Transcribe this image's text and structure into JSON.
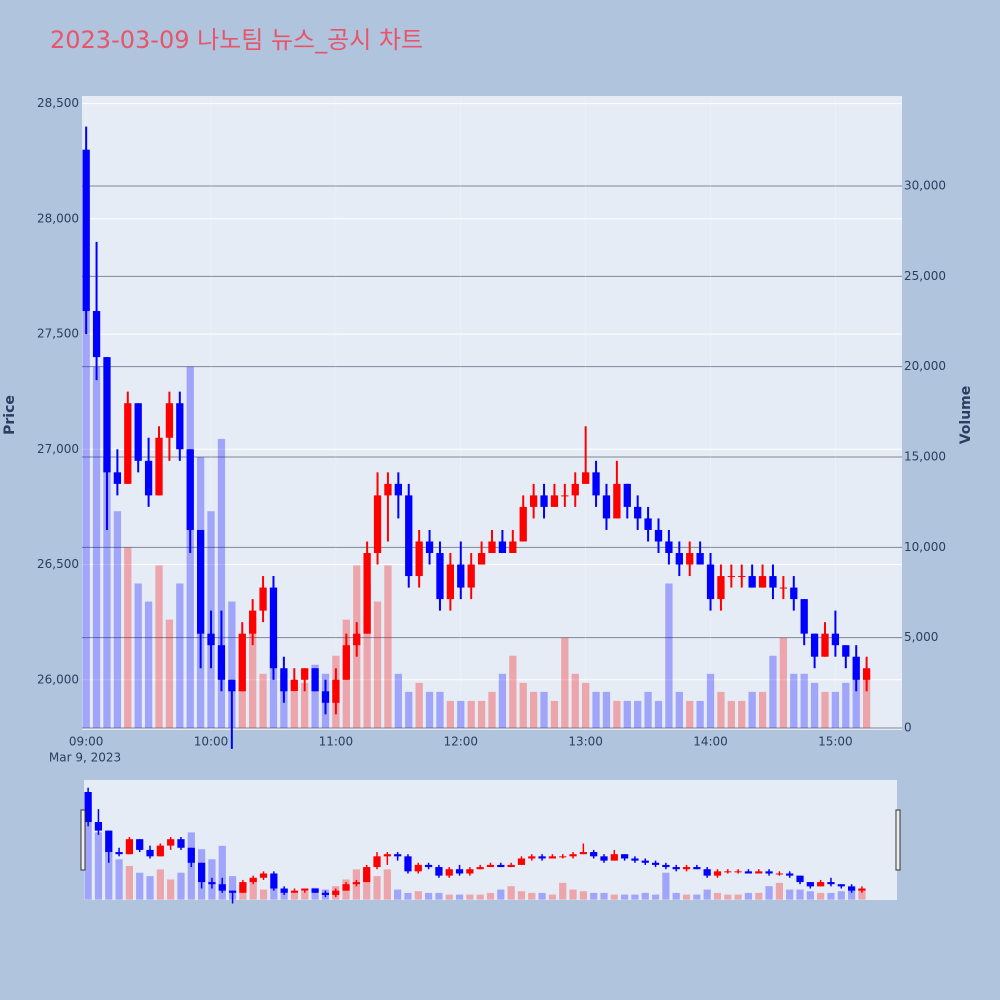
{
  "chart_data": {
    "type": "candlestick",
    "title": "2023-03-09 나노팀 뉴스_공시 차트",
    "y_label": "Price",
    "y2_label": "Volume",
    "x_date_label": "Mar 9, 2023",
    "increasing_color": "#ff0000",
    "decreasing_color": "#0000ff",
    "x": [
      "2023-03-09 09:00",
      "2023-03-09 09:05",
      "2023-03-09 09:10",
      "2023-03-09 09:15",
      "2023-03-09 09:20",
      "2023-03-09 09:25",
      "2023-03-09 09:30",
      "2023-03-09 09:35",
      "2023-03-09 09:40",
      "2023-03-09 09:45",
      "2023-03-09 09:50",
      "2023-03-09 09:55",
      "2023-03-09 10:00",
      "2023-03-09 10:05",
      "2023-03-09 10:10",
      "2023-03-09 10:15",
      "2023-03-09 10:20",
      "2023-03-09 10:25",
      "2023-03-09 10:30",
      "2023-03-09 10:35",
      "2023-03-09 10:40",
      "2023-03-09 10:45",
      "2023-03-09 10:50",
      "2023-03-09 10:55",
      "2023-03-09 11:00",
      "2023-03-09 11:05",
      "2023-03-09 11:10",
      "2023-03-09 11:15",
      "2023-03-09 11:20",
      "2023-03-09 11:25",
      "2023-03-09 11:30",
      "2023-03-09 11:35",
      "2023-03-09 11:40",
      "2023-03-09 11:45",
      "2023-03-09 11:50",
      "2023-03-09 11:55",
      "2023-03-09 12:00",
      "2023-03-09 12:05",
      "2023-03-09 12:10",
      "2023-03-09 12:15",
      "2023-03-09 12:20",
      "2023-03-09 12:25",
      "2023-03-09 12:30",
      "2023-03-09 12:35",
      "2023-03-09 12:40",
      "2023-03-09 12:45",
      "2023-03-09 12:50",
      "2023-03-09 12:55",
      "2023-03-09 13:00",
      "2023-03-09 13:05",
      "2023-03-09 13:10",
      "2023-03-09 13:15",
      "2023-03-09 13:20",
      "2023-03-09 13:25",
      "2023-03-09 13:30",
      "2023-03-09 13:35",
      "2023-03-09 13:40",
      "2023-03-09 13:45",
      "2023-03-09 13:50",
      "2023-03-09 13:55",
      "2023-03-09 14:00",
      "2023-03-09 14:05",
      "2023-03-09 14:10",
      "2023-03-09 14:15",
      "2023-03-09 14:20",
      "2023-03-09 14:25",
      "2023-03-09 14:30",
      "2023-03-09 14:35",
      "2023-03-09 14:40",
      "2023-03-09 14:45",
      "2023-03-09 14:50",
      "2023-03-09 14:55",
      "2023-03-09 15:00",
      "2023-03-09 15:05",
      "2023-03-09 15:10",
      "2023-03-09 15:15"
    ],
    "open": [
      28300,
      27600,
      27400,
      26900,
      26850,
      27200,
      26950,
      26800,
      27050,
      27200,
      27000,
      26650,
      26200,
      26150,
      26000,
      25950,
      26200,
      26300,
      26400,
      26050,
      25950,
      26000,
      26050,
      25950,
      25900,
      26000,
      26150,
      26200,
      26550,
      26800,
      26850,
      26800,
      26450,
      26600,
      26550,
      26350,
      26500,
      26400,
      26500,
      26550,
      26600,
      26550,
      26600,
      26750,
      26800,
      26750,
      26800,
      26800,
      26850,
      26900,
      26800,
      26700,
      26850,
      26750,
      26700,
      26650,
      26600,
      26550,
      26500,
      26550,
      26500,
      26350,
      26450,
      26450,
      26450,
      26400,
      26450,
      26400,
      26400,
      26350,
      26200,
      26100,
      26200,
      26150,
      26100,
      26000
    ],
    "high": [
      28400,
      27900,
      27400,
      27000,
      27250,
      27200,
      27050,
      27100,
      27250,
      27250,
      27000,
      26650,
      26300,
      26300,
      26000,
      26250,
      26350,
      26450,
      26450,
      26100,
      26050,
      26050,
      26050,
      26000,
      26050,
      26200,
      26250,
      26600,
      26900,
      26900,
      26900,
      26850,
      26650,
      26650,
      26600,
      26550,
      26600,
      26550,
      26600,
      26650,
      26650,
      26650,
      26800,
      26850,
      26850,
      26850,
      26850,
      26900,
      27100,
      26950,
      26850,
      26950,
      26850,
      26800,
      26750,
      26700,
      26650,
      26600,
      26600,
      26600,
      26550,
      26500,
      26500,
      26500,
      26500,
      26500,
      26500,
      26450,
      26450,
      26350,
      26200,
      26250,
      26300,
      26150,
      26150,
      26100
    ],
    "low": [
      27500,
      27300,
      26650,
      26800,
      26850,
      26900,
      26750,
      26800,
      26950,
      26950,
      26550,
      26050,
      26050,
      25950,
      25700,
      25950,
      26150,
      26250,
      26000,
      25900,
      25950,
      25950,
      25950,
      25850,
      25850,
      26000,
      26100,
      26200,
      26500,
      26600,
      26700,
      26400,
      26400,
      26500,
      26300,
      26300,
      26350,
      26350,
      26500,
      26550,
      26550,
      26550,
      26600,
      26700,
      26700,
      26750,
      26750,
      26750,
      26850,
      26750,
      26650,
      26700,
      26700,
      26650,
      26600,
      26550,
      26500,
      26450,
      26450,
      26500,
      26300,
      26300,
      26400,
      26400,
      26400,
      26400,
      26350,
      26350,
      26300,
      26150,
      26050,
      26100,
      26100,
      26050,
      25950,
      25950
    ],
    "close": [
      27600,
      27400,
      26900,
      26850,
      27200,
      26950,
      26800,
      27050,
      27200,
      27000,
      26650,
      26200,
      26150,
      26000,
      25950,
      26200,
      26300,
      26400,
      26050,
      25950,
      26000,
      26050,
      25950,
      25900,
      26000,
      26150,
      26200,
      26550,
      26800,
      26850,
      26800,
      26450,
      26600,
      26550,
      26350,
      26500,
      26400,
      26500,
      26550,
      26600,
      26550,
      26600,
      26750,
      26800,
      26750,
      26800,
      26800,
      26850,
      26900,
      26800,
      26700,
      26850,
      26750,
      26700,
      26650,
      26600,
      26550,
      26500,
      26550,
      26500,
      26350,
      26450,
      26450,
      26450,
      26400,
      26450,
      26400,
      26400,
      26350,
      26200,
      26100,
      26200,
      26150,
      26100,
      26000,
      26050
    ],
    "volume": [
      30000,
      20000,
      15000,
      12000,
      10000,
      8000,
      7000,
      9000,
      6000,
      8000,
      20000,
      15000,
      12000,
      16000,
      7000,
      5000,
      6000,
      3000,
      4000,
      3000,
      2000,
      2500,
      3500,
      3000,
      4000,
      6000,
      9000,
      8000,
      7000,
      9000,
      3000,
      2000,
      2500,
      2000,
      2000,
      1500,
      1500,
      1500,
      1500,
      2000,
      3000,
      4000,
      2500,
      2000,
      2000,
      1500,
      5000,
      3000,
      2500,
      2000,
      2000,
      1500,
      1500,
      1500,
      2000,
      1500,
      8000,
      2000,
      1500,
      1500,
      3000,
      2000,
      1500,
      1500,
      2000,
      2000,
      4000,
      5000,
      3000,
      3000,
      2500,
      2000,
      2000,
      2500,
      3000,
      3000
    ],
    "xlim": [
      "2023-03-09 08:58",
      "2023-03-09 15:32"
    ],
    "xticks": [
      {
        "value": "2023-03-09 09:00",
        "label": "09:00"
      },
      {
        "value": "2023-03-09 10:00",
        "label": "10:00"
      },
      {
        "value": "2023-03-09 11:00",
        "label": "11:00"
      },
      {
        "value": "2023-03-09 12:00",
        "label": "12:00"
      },
      {
        "value": "2023-03-09 13:00",
        "label": "13:00"
      },
      {
        "value": "2023-03-09 14:00",
        "label": "14:00"
      },
      {
        "value": "2023-03-09 15:00",
        "label": "15:00"
      }
    ],
    "ylim": [
      25782,
      28533
    ],
    "yticks": [
      {
        "value": 26000,
        "label": "26,000"
      },
      {
        "value": 26500,
        "label": "26,500"
      },
      {
        "value": 27000,
        "label": "27,000"
      },
      {
        "value": 27500,
        "label": "27,500"
      },
      {
        "value": 28000,
        "label": "28,000"
      },
      {
        "value": 28500,
        "label": "28,500"
      }
    ],
    "y2lim": [
      -110,
      34982
    ],
    "y2ticks": [
      0,
      {
        "value": 5000,
        "label": "5,000"
      },
      {
        "value": 10000,
        "label": "10,000"
      },
      {
        "value": 15000,
        "label": "15,000"
      },
      {
        "value": 20000,
        "label": "20,000"
      },
      {
        "value": 25000,
        "label": "25,000"
      },
      {
        "value": 30000,
        "label": "30,000"
      }
    ],
    "grid": true
  }
}
